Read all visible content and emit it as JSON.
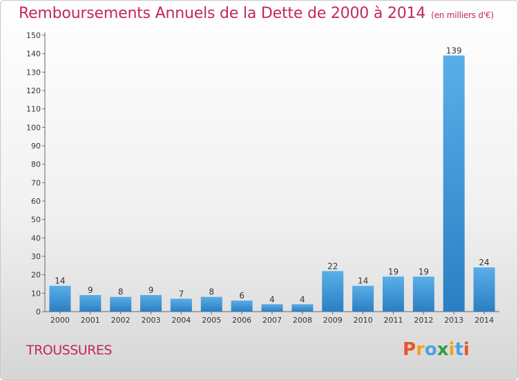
{
  "header": {
    "title": "Remboursements Annuels de la Dette de 2000 à 2014",
    "units": "(en milliers d'€)"
  },
  "footer": {
    "town": "TROUSSURES",
    "logo_text": "Proxiti"
  },
  "colors": {
    "title": "#c0275e",
    "bar_top": "#5aaee8",
    "bar_bottom": "#2a7fc4",
    "logo_letters": [
      "#e8542a",
      "#f0a21c",
      "#4aa3df",
      "#2f9e44",
      "#f0a21c",
      "#4aa3df",
      "#e8542a"
    ]
  },
  "chart_data": {
    "type": "bar",
    "categories": [
      "2000",
      "2001",
      "2002",
      "2003",
      "2004",
      "2005",
      "2006",
      "2007",
      "2008",
      "2009",
      "2010",
      "2011",
      "2012",
      "2013",
      "2014"
    ],
    "values": [
      14,
      9,
      8,
      9,
      7,
      8,
      6,
      4,
      4,
      22,
      14,
      19,
      19,
      139,
      24
    ],
    "ylim": [
      0,
      150
    ],
    "yticks": [
      0,
      10,
      20,
      30,
      40,
      50,
      60,
      70,
      80,
      90,
      100,
      110,
      120,
      130,
      140,
      150
    ],
    "grid": false,
    "xlabel": "",
    "ylabel": ""
  }
}
